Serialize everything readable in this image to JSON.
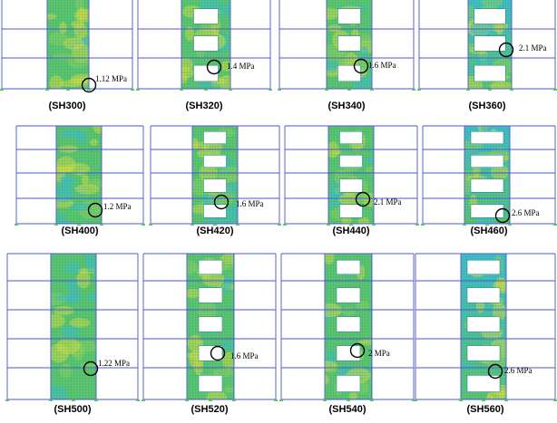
{
  "colors": {
    "frame_line": "#4a55d6",
    "mesh_line": "#2f8a9a",
    "wall_green": "#5cc86a",
    "wall_cyan": "#3fc0c8",
    "wall_yellow": "#d8e040",
    "opening": "#ffffff",
    "marker_circle": "#000000",
    "support": "#5bc85b"
  },
  "panels": [
    {
      "label": "(SH300)",
      "stress": "1.12 MPa"
    },
    {
      "label": "(SH320)",
      "stress": "1.4 MPa"
    },
    {
      "label": "(SH340)",
      "stress": "1.6 MPa"
    },
    {
      "label": "(SH360)",
      "stress": "2.1 MPa"
    },
    {
      "label": "(SH400)",
      "stress": "1.2 MPa"
    },
    {
      "label": "(SH420)",
      "stress": "1.6 MPa"
    },
    {
      "label": "(SH440)",
      "stress": "2.1 MPa"
    },
    {
      "label": "(SH460)",
      "stress": "2.6 MPa"
    },
    {
      "label": "(SH500)",
      "stress": "1.22 MPa"
    },
    {
      "label": "(SH520)",
      "stress": "1.6 MPa"
    },
    {
      "label": "(SH540)",
      "stress": "2 MPa"
    },
    {
      "label": "(SH560)",
      "stress": "2.6 MPa"
    }
  ]
}
